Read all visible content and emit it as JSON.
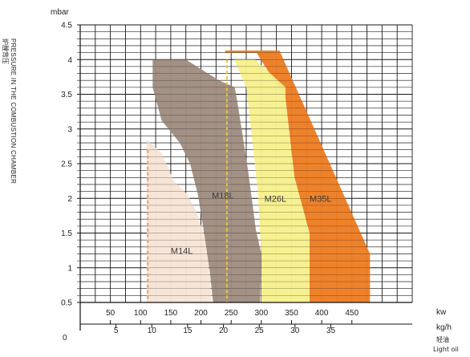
{
  "chart_data": {
    "type": "area",
    "title": "",
    "ylabel_en": "PRESSURE   IN  THE  COMBUSTION  CHAMBER",
    "ylabel_cn": "炉膛背压",
    "yunit": "mbar",
    "xunit_kw": "kw",
    "xunit_kgh": "kg/h",
    "xunit_cn": "轻油",
    "xunit_fuel": "Light oil",
    "ylim": [
      0.5,
      4.5
    ],
    "yticks": [
      "0.5",
      "1",
      "1.5",
      "2",
      "2.5",
      "3",
      "3.5",
      "4",
      "4.5"
    ],
    "y_zero_label": "0",
    "xlim_kw": [
      0,
      550
    ],
    "kw_ticks": [
      {
        "value": 50,
        "label": "50"
      },
      {
        "value": 100,
        "label": "100"
      },
      {
        "value": 150,
        "label": "150"
      },
      {
        "value": 200,
        "label": "200"
      },
      {
        "value": 250,
        "label": "250"
      },
      {
        "value": 300,
        "label": "300"
      },
      {
        "value": 350,
        "label": "350"
      },
      {
        "value": 400,
        "label": "400"
      },
      {
        "value": 450,
        "label": "450"
      }
    ],
    "kgh_ticks": [
      {
        "value": 5,
        "label": "5"
      },
      {
        "value": 10,
        "label": "10"
      },
      {
        "value": 15,
        "label": "15"
      },
      {
        "value": 20,
        "label": "20"
      },
      {
        "value": 25,
        "label": "25"
      },
      {
        "value": 30,
        "label": "30"
      },
      {
        "value": 35,
        "label": "35"
      }
    ],
    "grid": true,
    "series": [
      {
        "name": "M35L",
        "color": "#ed7d22",
        "polygon_kw_mbar": [
          [
            240,
            4.13
          ],
          [
            330,
            4.13
          ],
          [
            480,
            1.2
          ],
          [
            480,
            0.5
          ],
          [
            380,
            0.5
          ],
          [
            380,
            1.5
          ],
          [
            355,
            2.3
          ],
          [
            340,
            3.45
          ],
          [
            328,
            3.6
          ],
          [
            292,
            4.1
          ],
          [
            240,
            4.1
          ]
        ]
      },
      {
        "name": "M26L",
        "color": "#f7f08c",
        "polygon_kw_mbar": [
          [
            195,
            4.0
          ],
          [
            290,
            4.0
          ],
          [
            340,
            3.6
          ],
          [
            340,
            3.45
          ],
          [
            355,
            2.3
          ],
          [
            380,
            1.5
          ],
          [
            380,
            0.5
          ],
          [
            300,
            0.5
          ],
          [
            300,
            1.2
          ],
          [
            294,
            2.1
          ],
          [
            283,
            3.0
          ],
          [
            275,
            3.6
          ],
          [
            255,
            4.0
          ]
        ]
      },
      {
        "name": "M18L",
        "color": "#9e8d7f",
        "polygon_kw_mbar": [
          [
            120,
            4.0
          ],
          [
            175,
            4.0
          ],
          [
            230,
            3.7
          ],
          [
            256,
            3.6
          ],
          [
            262,
            3.3
          ],
          [
            278,
            2.4
          ],
          [
            291,
            1.55
          ],
          [
            300,
            1.2
          ],
          [
            298,
            0.5
          ],
          [
            220,
            0.5
          ],
          [
            215,
            0.92
          ],
          [
            207,
            1.4
          ],
          [
            195,
            2.05
          ],
          [
            182,
            2.5
          ],
          [
            165,
            2.8
          ],
          [
            135,
            3.12
          ],
          [
            120,
            3.6
          ]
        ]
      },
      {
        "name": "M14L",
        "color": "#f7e4d5",
        "polygon_kw_mbar": [
          [
            110,
            2.85
          ],
          [
            135,
            2.65
          ],
          [
            155,
            2.25
          ],
          [
            178,
            2.05
          ],
          [
            192,
            1.82
          ],
          [
            206,
            1.46
          ],
          [
            213,
            1.0
          ],
          [
            218,
            0.5
          ],
          [
            110,
            0.5
          ]
        ]
      }
    ],
    "labels": [
      {
        "series": "M14L",
        "x": 150,
        "y": 1.2
      },
      {
        "series": "M18L",
        "x": 218,
        "y": 2.0
      },
      {
        "series": "M26L",
        "x": 305,
        "y": 1.95
      },
      {
        "series": "M35L",
        "x": 380,
        "y": 1.95
      }
    ],
    "dashed_lines_kw": [
      {
        "x": 112,
        "y_top": 2.7,
        "color": "#e7a070"
      },
      {
        "x": 243,
        "y_top": 4.0,
        "color": "#e8c23c"
      }
    ]
  }
}
